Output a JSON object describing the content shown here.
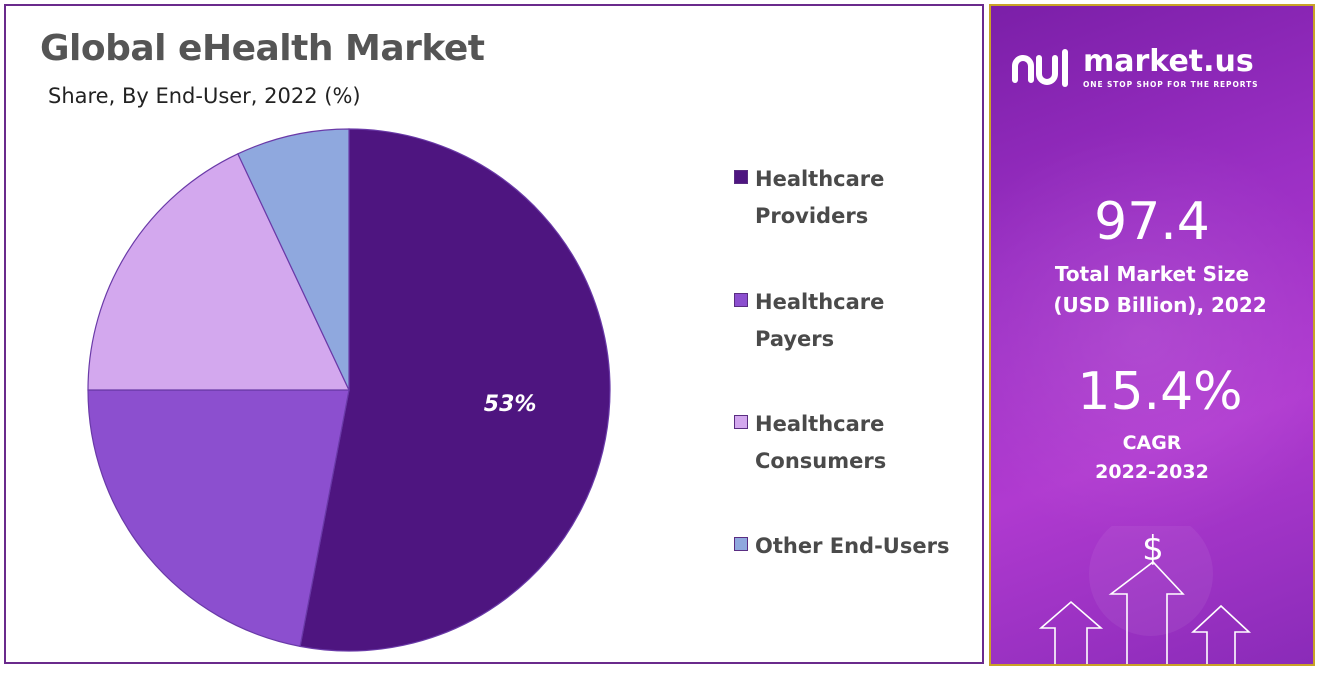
{
  "chart_data": {
    "type": "pie",
    "title": "Global eHealth Market",
    "subtitle": "Share, By End-User, 2022 (%)",
    "slices": [
      {
        "label": "Healthcare\nProviders",
        "value": 53,
        "color": "#4e1580",
        "data_label": "53%"
      },
      {
        "label": "Healthcare\nPayers",
        "value": 22,
        "color": "#8c4fcf",
        "data_label": ""
      },
      {
        "label": "Healthcare\nConsumers",
        "value": 18,
        "color": "#d3a8ee",
        "data_label": ""
      },
      {
        "label": "Other End-Users",
        "value": 7,
        "color": "#8fa8de",
        "data_label": ""
      }
    ],
    "legend_position": "right",
    "start_angle_deg": 0,
    "direction": "clockwise"
  },
  "panel": {
    "brand_name": "market.us",
    "brand_tagline": "ONE STOP SHOP FOR THE REPORTS",
    "market_size_value": "97.4",
    "market_size_label_line1": "Total Market Size",
    "market_size_label_line2": "(USD Billion), 2022",
    "cagr_value": "15.4%",
    "cagr_label_line1": "CAGR",
    "cagr_label_line2": "2022-2032",
    "currency_symbol": "$",
    "icons": [
      "logo-mark-icon",
      "up-arrow-icon"
    ],
    "colors": {
      "gradient_start": "#7b1fa8",
      "gradient_end": "#b03ad0",
      "border": "#c9a227"
    }
  }
}
